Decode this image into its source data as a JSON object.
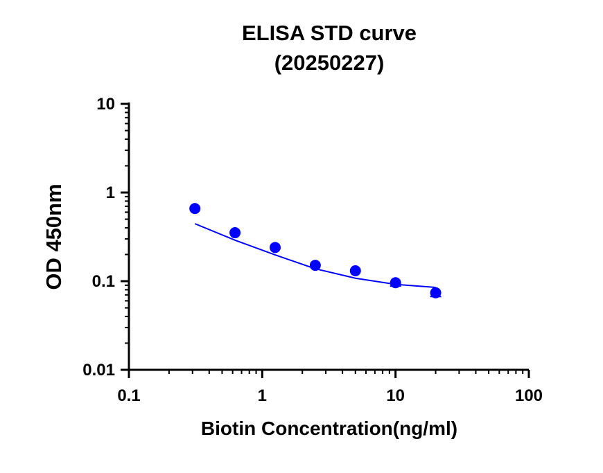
{
  "chart_data": {
    "type": "scatter",
    "title": "ELISA STD curve",
    "subtitle": "(20250227)",
    "xlabel": "Biotin Concentration(ng/ml)",
    "ylabel": "OD 450nm",
    "xscale": "log",
    "yscale": "log",
    "xlim": [
      0.1,
      100
    ],
    "ylim": [
      0.01,
      10
    ],
    "xticks": [
      {
        "v": 0.1,
        "label": "0.1"
      },
      {
        "v": 1,
        "label": "1"
      },
      {
        "v": 10,
        "label": "10"
      },
      {
        "v": 100,
        "label": "100"
      }
    ],
    "yticks": [
      {
        "v": 0.01,
        "label": "0.01"
      },
      {
        "v": 0.1,
        "label": "0.1"
      },
      {
        "v": 1,
        "label": "1"
      },
      {
        "v": 10,
        "label": "10"
      }
    ],
    "grid": false,
    "color": "#0000ff",
    "points": {
      "x": [
        0.3125,
        0.625,
        1.25,
        2.5,
        5,
        10,
        20
      ],
      "y": [
        0.66,
        0.352,
        0.24,
        0.151,
        0.131,
        0.096,
        0.074
      ],
      "err": [
        0,
        0,
        0,
        0,
        0,
        0.008,
        0.007
      ]
    },
    "fit_curve": {
      "x": [
        0.3125,
        0.625,
        1.25,
        2.5,
        5,
        10,
        20
      ],
      "y": [
        0.445,
        0.29,
        0.198,
        0.138,
        0.108,
        0.092,
        0.085
      ]
    }
  }
}
